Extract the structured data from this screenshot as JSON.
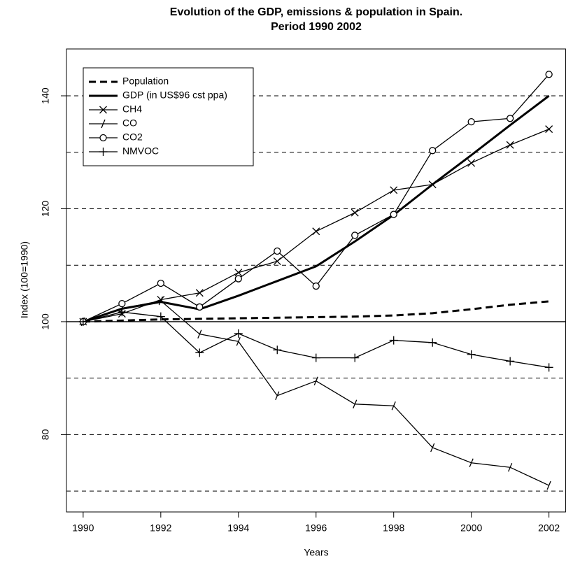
{
  "chart_data": {
    "type": "line",
    "title": "Evolution of the GDP, emissions & population in Spain.",
    "subtitle": "Period 1990  2002",
    "x_label": "Years",
    "y_label": "Index (100=1990)",
    "x": [
      1990,
      1991,
      1992,
      1993,
      1994,
      1995,
      1996,
      1997,
      1998,
      1999,
      2000,
      2001,
      2002
    ],
    "xlim": [
      1989.57,
      2002.43
    ],
    "xticks": [
      1990,
      1992,
      1994,
      1996,
      1998,
      2000,
      2002
    ],
    "ylim": [
      66.3,
      148.3
    ],
    "yticks": [
      80,
      100,
      120,
      140
    ],
    "grid_values": [
      70,
      80,
      90,
      110,
      120,
      130,
      140
    ],
    "reference_line": 100,
    "legend": "top-left",
    "series": [
      {
        "name": "Population",
        "color": "#000000",
        "dash": true,
        "width": 3,
        "marker": null,
        "values": [
          100,
          100.2,
          100.4,
          100.5,
          100.6,
          100.7,
          100.8,
          100.9,
          101.1,
          101.5,
          102.2,
          103,
          103.6
        ]
      },
      {
        "name": "GDP (in US$96 cst ppa)",
        "color": "#000000",
        "dash": false,
        "width": 3,
        "marker": null,
        "values": [
          100,
          102.3,
          103.5,
          102.2,
          104.6,
          107.2,
          109.8,
          114.2,
          118.9,
          124.3,
          129.5,
          134.8,
          140
        ]
      },
      {
        "name": "CH4",
        "color": "#000000",
        "dash": false,
        "width": 1.3,
        "marker": "x",
        "values": [
          100,
          101.4,
          103.9,
          105.1,
          108.7,
          110.7,
          116,
          119.3,
          123.3,
          124.3,
          128.1,
          131.3,
          134.1
        ]
      },
      {
        "name": "CO",
        "color": "#000000",
        "dash": false,
        "width": 1.3,
        "marker": "/",
        "values": [
          100,
          102.3,
          103.7,
          97.8,
          96.5,
          86.9,
          89.5,
          85.4,
          85.1,
          77.7,
          75,
          74.2,
          71
        ]
      },
      {
        "name": "CO2",
        "color": "#000000",
        "dash": false,
        "width": 1.3,
        "marker": "o",
        "values": [
          100,
          103.2,
          106.8,
          102.6,
          107.6,
          112.5,
          106.3,
          115.3,
          119,
          130.3,
          135.4,
          136,
          143.8
        ]
      },
      {
        "name": "NMVOC",
        "color": "#000000",
        "dash": false,
        "width": 1.3,
        "marker": "+",
        "values": [
          100,
          101.7,
          100.9,
          94.5,
          97.9,
          95,
          93.6,
          93.6,
          96.7,
          96.3,
          94.2,
          93,
          91.9
        ]
      }
    ]
  }
}
